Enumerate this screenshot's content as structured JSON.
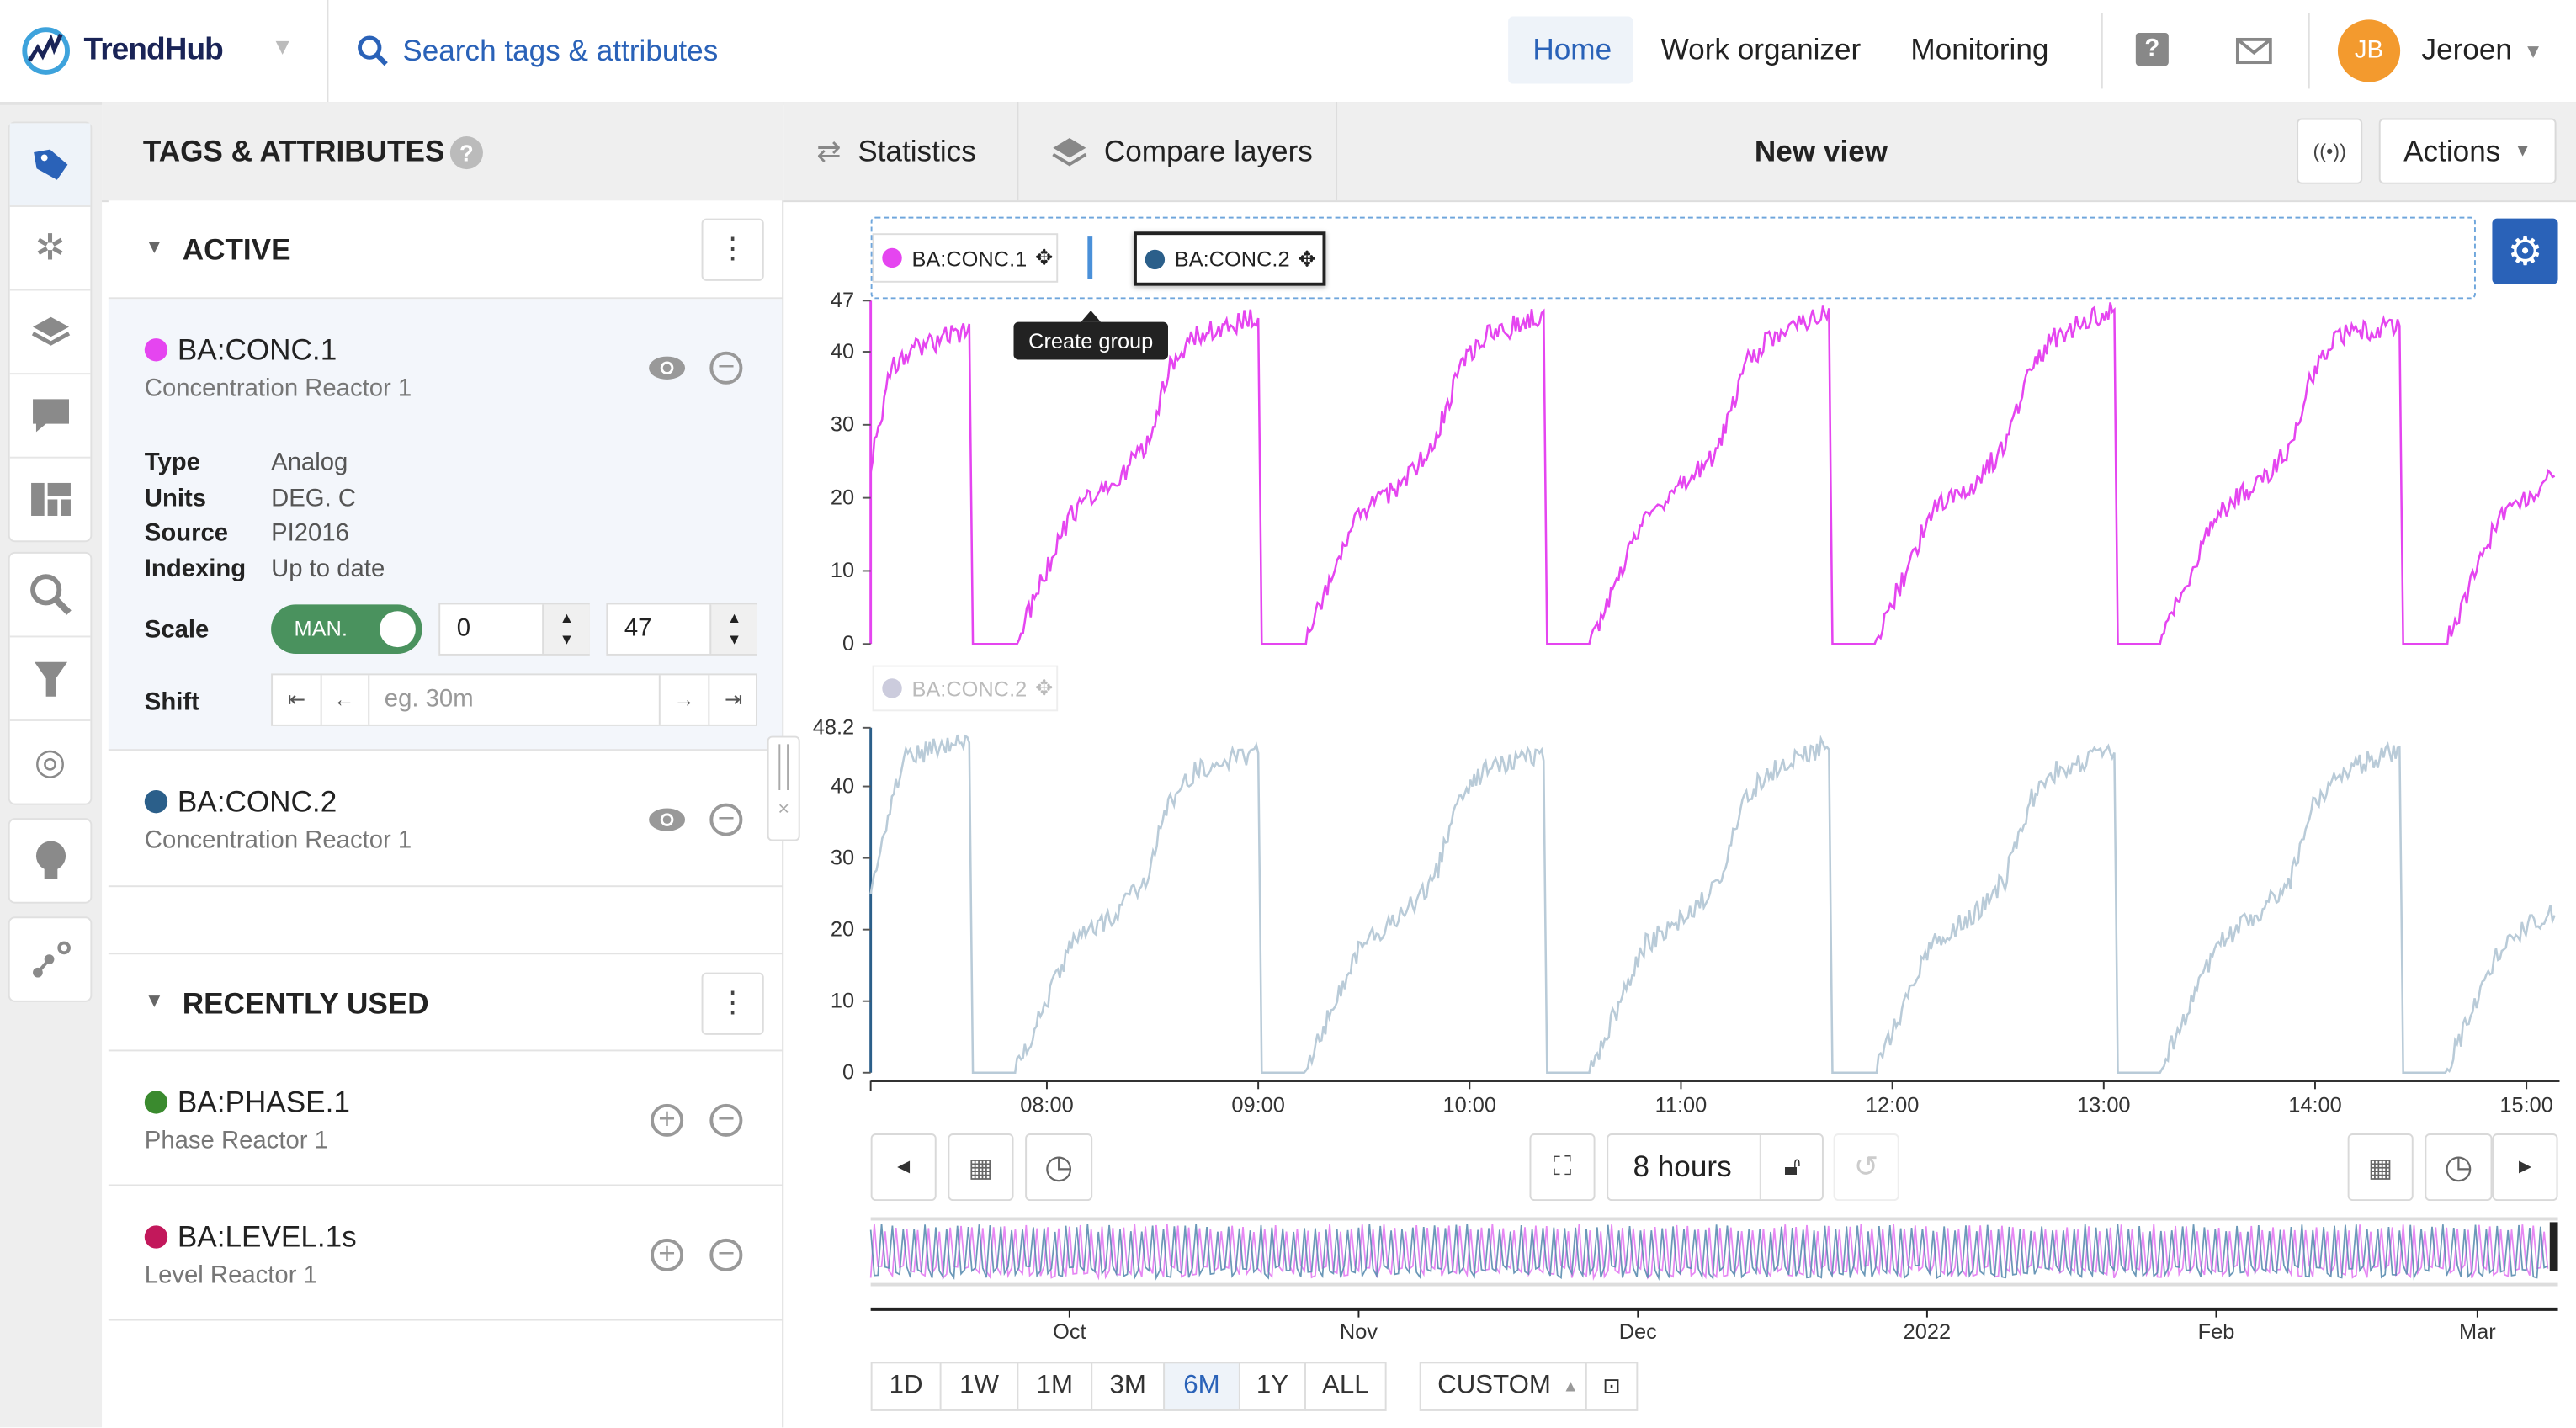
{
  "app": {
    "name": "TrendHub",
    "search_placeholder": "Search tags & attributes"
  },
  "nav": {
    "items": [
      "Home",
      "Work organizer",
      "Monitoring"
    ],
    "active": "Home",
    "user_initials": "JB",
    "user_name": "Jeroen"
  },
  "sidebar": {
    "icons": [
      "tag-icon",
      "tools-icon",
      "layers-icon",
      "comment-icon",
      "dashboard-icon",
      "search-icon",
      "filter-icon",
      "fingerprint-icon",
      "lightbulb-icon",
      "scatter-icon"
    ]
  },
  "panel": {
    "title": "TAGS & ATTRIBUTES",
    "active_header": "ACTIVE",
    "recent_header": "RECENTLY USED",
    "active_tags": [
      {
        "name": "BA:CONC.1",
        "desc": "Concentration Reactor 1",
        "color": "#e545f0",
        "details": {
          "type_label": "Type",
          "type": "Analog",
          "units_label": "Units",
          "units": "DEG. C",
          "source_label": "Source",
          "source": "PI2016",
          "indexing_label": "Indexing",
          "indexing": "Up to date"
        },
        "scale_label": "Scale",
        "scale_mode": "MAN.",
        "scale_min": "0",
        "scale_max": "47",
        "shift_label": "Shift",
        "shift_placeholder": "eg. 30m"
      },
      {
        "name": "BA:CONC.2",
        "desc": "Concentration Reactor 1",
        "color": "#2b5f8a"
      }
    ],
    "recent_tags": [
      {
        "name": "BA:PHASE.1",
        "desc": "Phase Reactor 1",
        "color": "#3a8a2e"
      },
      {
        "name": "BA:LEVEL.1s",
        "desc": "Level Reactor 1",
        "color": "#c2185b"
      }
    ]
  },
  "toolbar": {
    "statistics": "Statistics",
    "compare_layers": "Compare layers",
    "view_title": "New view",
    "actions": "Actions"
  },
  "legend": {
    "items": [
      "BA:CONC.1",
      "BA:CONC.2"
    ],
    "tooltip": "Create group",
    "faded_item": "BA:CONC.2"
  },
  "controls": {
    "duration": "8 hours",
    "ranges": [
      "1D",
      "1W",
      "1M",
      "3M",
      "6M",
      "1Y",
      "ALL"
    ],
    "active_range": "6M",
    "custom": "CUSTOM"
  },
  "navigator": {
    "labels": [
      "Oct",
      "Nov",
      "Dec",
      "2022",
      "Feb",
      "Mar"
    ]
  },
  "chart_data": [
    {
      "type": "line",
      "series": [
        {
          "name": "BA:CONC.1",
          "color": "#e545f0",
          "points": [
            [
              "07:10",
              25
            ],
            [
              "07:16",
              38
            ],
            [
              "07:20",
              40
            ],
            [
              "07:38",
              43
            ],
            [
              "07:39",
              0
            ],
            [
              "07:51",
              0
            ],
            [
              "08:07",
              18
            ],
            [
              "08:19",
              22
            ],
            [
              "08:28",
              27
            ],
            [
              "08:35",
              38
            ],
            [
              "08:42",
              42
            ],
            [
              "09:00",
              45
            ],
            [
              "09:01",
              0
            ],
            [
              "09:13",
              0
            ],
            [
              "09:29",
              18
            ],
            [
              "09:41",
              22
            ],
            [
              "09:50",
              27
            ],
            [
              "09:57",
              38
            ],
            [
              "10:04",
              42
            ],
            [
              "10:21",
              45
            ],
            [
              "10:22",
              0
            ],
            [
              "10:34",
              0
            ],
            [
              "10:50",
              18
            ],
            [
              "11:02",
              22
            ],
            [
              "11:11",
              27
            ],
            [
              "11:18",
              38
            ],
            [
              "11:25",
              42
            ],
            [
              "11:42",
              46
            ],
            [
              "11:43",
              0
            ],
            [
              "11:55",
              0
            ],
            [
              "12:11",
              18
            ],
            [
              "12:23",
              22
            ],
            [
              "12:32",
              27
            ],
            [
              "12:39",
              38
            ],
            [
              "12:46",
              42
            ],
            [
              "13:03",
              46
            ],
            [
              "13:04",
              0
            ],
            [
              "13:16",
              0
            ],
            [
              "13:32",
              18
            ],
            [
              "13:44",
              22
            ],
            [
              "13:53",
              27
            ],
            [
              "14:00",
              38
            ],
            [
              "14:07",
              42
            ],
            [
              "14:24",
              44
            ],
            [
              "14:25",
              0
            ],
            [
              "14:37",
              0
            ],
            [
              "14:53",
              18
            ],
            [
              "15:05",
              22
            ],
            [
              "15:08",
              23
            ]
          ]
        }
      ],
      "ylim": [
        0,
        47
      ],
      "yticks": [
        0,
        10,
        20,
        30,
        40,
        47
      ],
      "xticks": [
        "08:00",
        "09:00",
        "10:00",
        "11:00",
        "12:00",
        "13:00",
        "14:00",
        "15:00"
      ],
      "xlim": [
        "07:10",
        "15:08"
      ]
    },
    {
      "type": "line",
      "series": [
        {
          "name": "BA:CONC.2",
          "color": "#b9cbd8",
          "points": [
            [
              "07:10",
              25
            ],
            [
              "07:16",
              38
            ],
            [
              "07:20",
              44
            ],
            [
              "07:38",
              47
            ],
            [
              "07:39",
              0
            ],
            [
              "07:51",
              0
            ],
            [
              "08:07",
              18
            ],
            [
              "08:19",
              22
            ],
            [
              "08:28",
              27
            ],
            [
              "08:35",
              38
            ],
            [
              "08:42",
              42
            ],
            [
              "09:00",
              45
            ],
            [
              "09:01",
              0
            ],
            [
              "09:13",
              0
            ],
            [
              "09:29",
              18
            ],
            [
              "09:41",
              22
            ],
            [
              "09:50",
              27
            ],
            [
              "09:57",
              38
            ],
            [
              "10:04",
              42
            ],
            [
              "10:21",
              45
            ],
            [
              "10:22",
              0
            ],
            [
              "10:34",
              0
            ],
            [
              "10:50",
              18
            ],
            [
              "11:02",
              22
            ],
            [
              "11:11",
              27
            ],
            [
              "11:18",
              38
            ],
            [
              "11:25",
              42
            ],
            [
              "11:42",
              46
            ],
            [
              "11:43",
              0
            ],
            [
              "11:55",
              0
            ],
            [
              "12:11",
              18
            ],
            [
              "12:23",
              22
            ],
            [
              "12:32",
              27
            ],
            [
              "12:39",
              38
            ],
            [
              "12:46",
              42
            ],
            [
              "13:03",
              45
            ],
            [
              "13:04",
              0
            ],
            [
              "13:16",
              0
            ],
            [
              "13:32",
              18
            ],
            [
              "13:44",
              22
            ],
            [
              "13:53",
              27
            ],
            [
              "14:00",
              38
            ],
            [
              "14:07",
              42
            ],
            [
              "14:24",
              45
            ],
            [
              "14:25",
              0
            ],
            [
              "14:37",
              0
            ],
            [
              "14:53",
              18
            ],
            [
              "15:05",
              22
            ],
            [
              "15:08",
              22
            ]
          ]
        }
      ],
      "ylim": [
        0,
        48.2
      ],
      "yticks": [
        0,
        10,
        20,
        30,
        40,
        48.2
      ],
      "xticks": [
        "08:00",
        "09:00",
        "10:00",
        "11:00",
        "12:00",
        "13:00",
        "14:00",
        "15:00"
      ],
      "xlim": [
        "07:10",
        "15:08"
      ]
    }
  ]
}
